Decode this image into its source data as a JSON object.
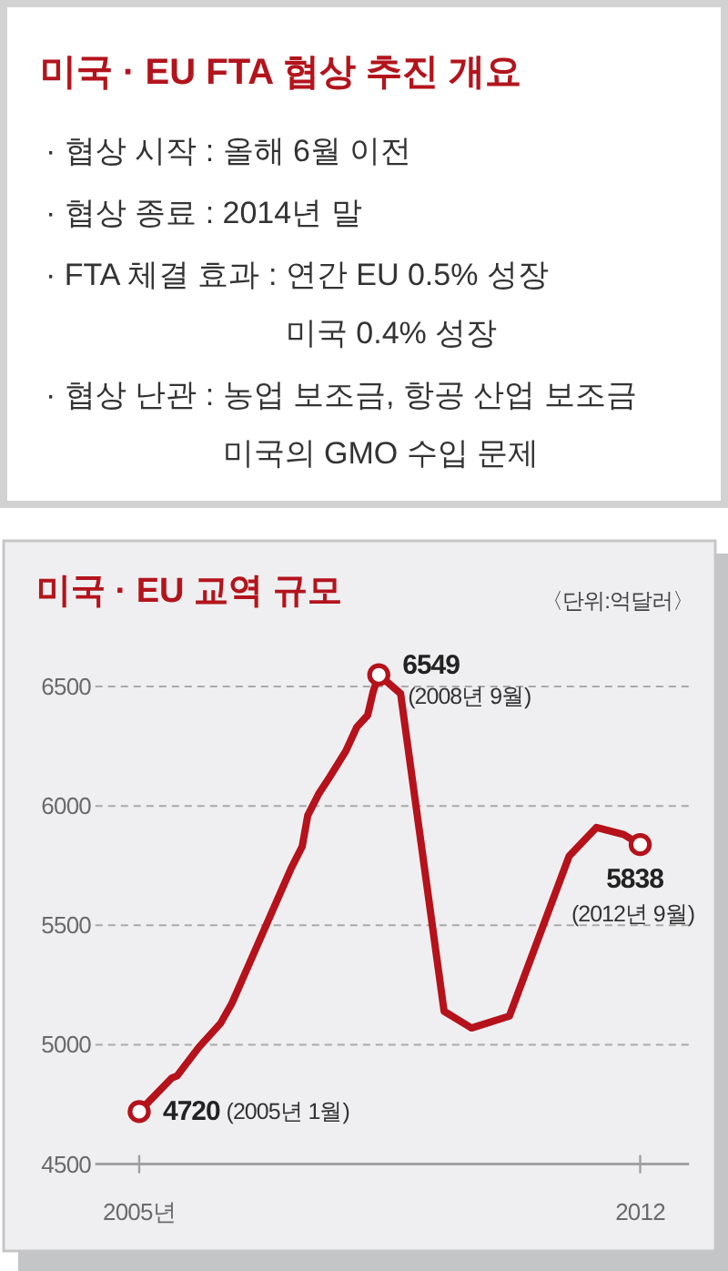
{
  "chart_data": [
    {
      "type": "other",
      "title": "미국 · EU FTA 협상 추진 개요",
      "annotations": [
        "· 협상 시작 : 올해 6월 이전",
        "· 협상 종료 : 2014년 말",
        "· FTA 체결 효과 : 연간 EU 0.5% 성장\n미국 0.4% 성장",
        "· 협상 난관 : 농업 보조금, 항공 산업 보조금\n미국의 GMO 수입 문제"
      ]
    },
    {
      "type": "line",
      "title": "미국 · EU 교역 규모",
      "ylabel": "〈단위:억달러〉",
      "xlim": [
        "2004-05",
        "2013-06"
      ],
      "xticks": [
        {
          "value": "2005-01",
          "label": "2005년"
        },
        {
          "value": "2012-09",
          "label": "2012"
        }
      ],
      "ylim": [
        4500,
        7110
      ],
      "yticks": [
        4500,
        5000,
        5500,
        6000,
        6500
      ],
      "grid": "y",
      "series": [
        {
          "type": "line",
          "color": "#b5121b",
          "x": [
            "2005-01",
            "2005-07",
            "2005-08",
            "2005-12",
            "2006-04",
            "2006-05",
            "2006-06",
            "2007-05",
            "2007-07",
            "2007-08",
            "2007-10",
            "2007-12",
            "2008-03",
            "2008-05",
            "2008-07",
            "2008-08",
            "2008-09",
            "2008-10",
            "2009-01",
            "2009-09",
            "2010-02",
            "2010-09",
            "2010-10",
            "2011-08",
            "2012-01",
            "2012-06",
            "2012-09"
          ],
          "values": [
            4720,
            4860,
            4870,
            4990,
            5090,
            5130,
            5170,
            5740,
            5830,
            5960,
            6050,
            6120,
            6230,
            6330,
            6380,
            6480,
            6549,
            6530,
            6470,
            5140,
            5070,
            5120,
            5180,
            5790,
            5910,
            5880,
            5838
          ]
        },
        {
          "type": "scatter",
          "color": "#b5121b",
          "marker": "circle",
          "x": [
            "2005-01",
            "2008-09",
            "2012-09"
          ],
          "values": [
            4720,
            6549,
            5838
          ],
          "value_labels": [
            "4720",
            "6549",
            "5838"
          ]
        }
      ],
      "annotations": [
        "(2005년 1월)",
        {
          "text": "(2008년 9월)",
          "x": "2008-09",
          "y": 6549
        },
        {
          "text": "(2012년 9월)",
          "x": "2012-09",
          "y": 5838
        }
      ]
    }
  ]
}
